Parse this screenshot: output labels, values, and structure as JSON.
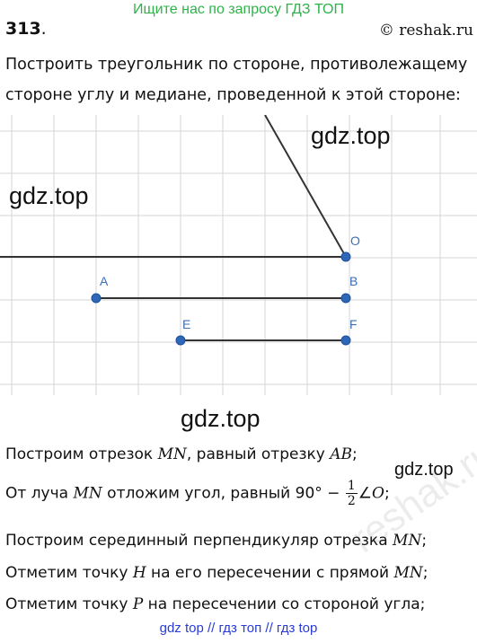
{
  "banner": "Ищите нас по запросу ГДЗ ТОП",
  "problem_number": "313",
  "problem_number_dot": ".",
  "site_credit": "© reshak.ru",
  "statement_line1": "Построить треугольник по стороне, противолежащему",
  "statement_line2": "стороне углу и медиане, проведенной к этой стороне:",
  "watermark": "gdz.top",
  "reshak_watermark": "reshak.ru",
  "diagram": {
    "points": {
      "O": "O",
      "A": "A",
      "B": "B",
      "E": "E",
      "F": "F"
    },
    "line_color": "#333333",
    "point_color": "#2f67b8",
    "grid_color": "#cfcfcf"
  },
  "steps": [
    {
      "p1": "Построим отрезок ",
      "m1": "MN",
      "p2": ", равный отрезку ",
      "m2": "AB",
      "p3": ";"
    },
    {
      "p1": "От луча ",
      "m1": "MN",
      "p2": " отложим угол, равный 90° − ",
      "num": "1",
      "den": "2",
      "p3": "∠",
      "m2": "O",
      "p4": ";"
    },
    {
      "p1": "Построим серединный перпендикуляр отрезка ",
      "m1": "MN",
      "p2": ";"
    },
    {
      "p1": "Отметим точку ",
      "m1": "H",
      "p2": " на его пересечении с прямой ",
      "m2": "MN",
      "p3": ";"
    },
    {
      "p1": "Отметим точку ",
      "m1": "P",
      "p2": " на пересечении со стороной угла;"
    }
  ],
  "bottom_links": "gdz top  //  гдз топ  //  гдз top"
}
